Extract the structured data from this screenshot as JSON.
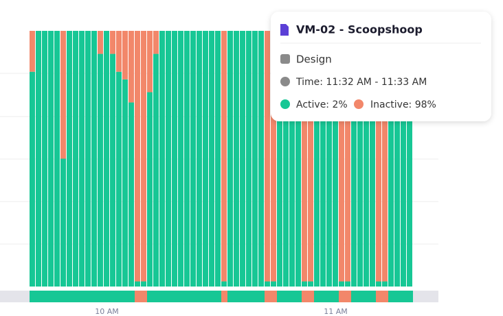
{
  "chart_data": {
    "type": "stacked-bar",
    "categories": [
      null,
      null,
      null,
      null,
      null,
      null,
      null,
      null,
      null,
      null,
      null,
      null,
      "10 AM",
      null,
      null,
      null,
      null,
      null,
      null,
      null,
      null,
      null,
      null,
      null,
      null,
      null,
      null,
      null,
      null,
      null,
      null,
      null,
      null,
      null,
      null,
      null,
      null,
      null,
      null,
      null,
      null,
      null,
      null,
      null,
      null,
      null,
      null,
      null,
      null,
      "11 AM",
      null,
      null,
      null,
      null,
      null,
      null,
      null,
      null,
      null,
      null,
      null,
      null
    ],
    "series": [
      {
        "name": "Active",
        "color": "#17c795",
        "values": [
          84,
          100,
          100,
          100,
          100,
          50,
          100,
          100,
          100,
          100,
          100,
          91,
          100,
          91,
          84,
          81,
          72,
          2,
          2,
          76,
          91,
          100,
          100,
          100,
          100,
          100,
          100,
          100,
          100,
          100,
          100,
          2,
          100,
          100,
          100,
          100,
          100,
          100,
          2,
          2,
          100,
          100,
          100,
          100,
          2,
          2,
          100,
          100,
          100,
          100,
          2,
          2,
          100,
          100,
          100,
          100,
          2,
          2,
          100,
          100,
          100,
          100
        ]
      },
      {
        "name": "Inactive",
        "color": "#f2876a",
        "values": [
          16,
          0,
          0,
          0,
          0,
          50,
          0,
          0,
          0,
          0,
          0,
          9,
          0,
          9,
          16,
          19,
          28,
          98,
          98,
          24,
          9,
          0,
          0,
          0,
          0,
          0,
          0,
          0,
          0,
          0,
          0,
          98,
          0,
          0,
          0,
          0,
          0,
          0,
          98,
          98,
          0,
          0,
          0,
          0,
          98,
          98,
          0,
          0,
          0,
          0,
          98,
          98,
          0,
          0,
          0,
          0,
          98,
          98,
          0,
          0,
          0,
          0
        ]
      }
    ],
    "ylim": [
      0,
      100
    ]
  },
  "tooltip": {
    "title": "VM-02 - Scoopshoop",
    "project": "Design",
    "time": "Time: 11:32 AM - 11:33 AM",
    "active": "Active: 2%",
    "inactive": "Inactive: 98%"
  }
}
